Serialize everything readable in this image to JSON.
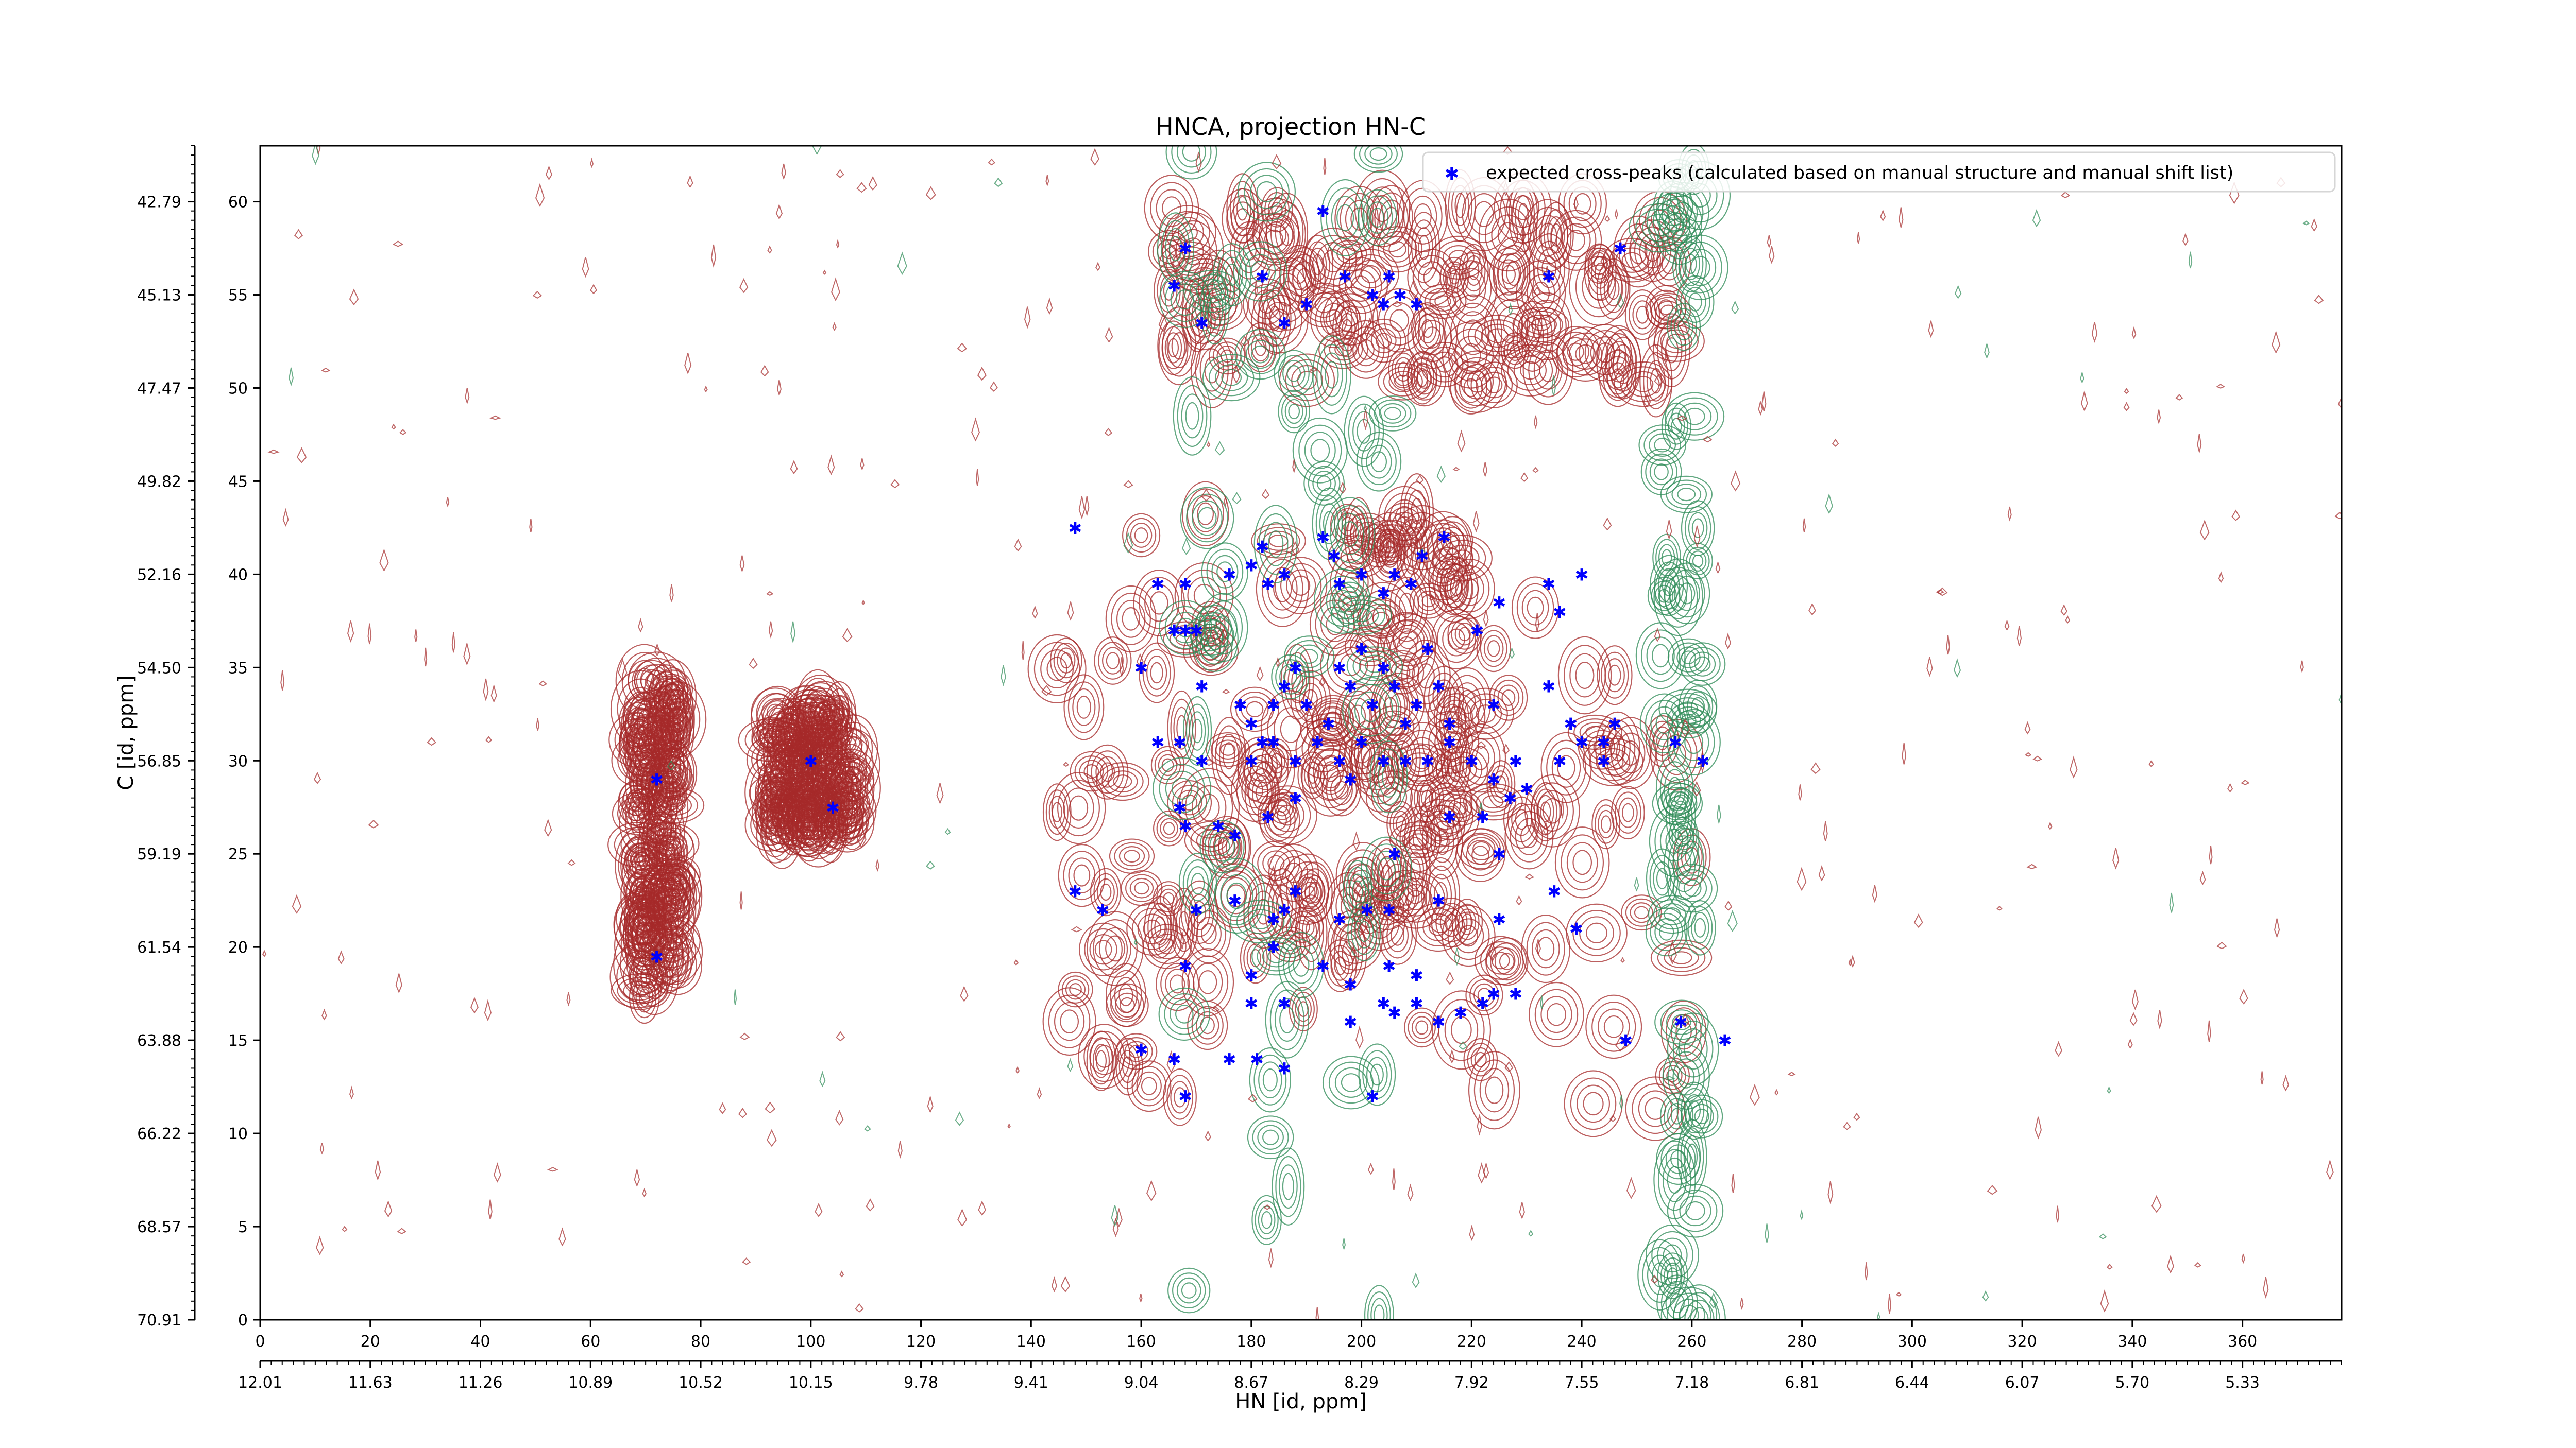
{
  "chart_data": {
    "type": "scatter",
    "title": "HNCA, projection HN-C",
    "xlabel": "HN [id, ppm]",
    "ylabel": "C [id, ppm]",
    "xlim": [
      0,
      378
    ],
    "ylim": [
      0,
      63
    ],
    "x_index_ticks": [
      "0",
      "20",
      "40",
      "60",
      "80",
      "100",
      "120",
      "140",
      "160",
      "180",
      "200",
      "220",
      "240",
      "260",
      "280",
      "300",
      "320",
      "340",
      "360"
    ],
    "x_ppm_ticks": [
      "12.01",
      "11.63",
      "11.26",
      "10.89",
      "10.52",
      "10.15",
      "9.78",
      "9.41",
      "9.04",
      "8.67",
      "8.29",
      "7.92",
      "7.55",
      "7.18",
      "6.81",
      "6.44",
      "6.07",
      "5.70",
      "5.33"
    ],
    "y_index_ticks": [
      "0",
      "5",
      "10",
      "15",
      "20",
      "25",
      "30",
      "35",
      "40",
      "45",
      "50",
      "55",
      "60"
    ],
    "y_ppm_ticks": [
      "70.91",
      "68.57",
      "66.22",
      "63.88",
      "61.54",
      "59.19",
      "56.85",
      "54.50",
      "52.16",
      "49.82",
      "47.47",
      "45.13",
      "42.79"
    ],
    "grid": false,
    "legend": {
      "position": "top-right",
      "label": "expected cross-peaks (calculated based on manual structure and manual shift list)"
    },
    "colors": {
      "peaks": "#0000ff",
      "positive_contours": "#a52a2a",
      "negative_contours": "#2e8b57"
    },
    "contour_ranges": [
      {
        "sign": "positive",
        "x": [
          160,
          222
        ],
        "y": [
          20,
          44
        ]
      },
      {
        "sign": "positive",
        "x": [
          143,
          262
        ],
        "y": [
          11,
          40
        ]
      },
      {
        "sign": "positive",
        "x": [
          165,
          258
        ],
        "y": [
          50,
          60
        ]
      },
      {
        "sign": "positive",
        "x": [
          68,
          76
        ],
        "y": [
          17,
          35
        ]
      },
      {
        "sign": "positive",
        "x": [
          92,
          108
        ],
        "y": [
          26,
          33
        ]
      },
      {
        "sign": "negative",
        "x": [
          166,
          206
        ],
        "y": [
          0,
          63
        ]
      },
      {
        "sign": "negative",
        "x": [
          254,
          262
        ],
        "y": [
          0,
          63
        ]
      }
    ],
    "series": [
      {
        "points": [
          [
            168,
            57.5
          ],
          [
            166,
            55.5
          ],
          [
            171,
            53.5
          ],
          [
            182,
            56
          ],
          [
            186,
            53.5
          ],
          [
            190,
            54.5
          ],
          [
            197,
            56
          ],
          [
            202,
            55
          ],
          [
            204,
            54.5
          ],
          [
            205,
            56
          ],
          [
            207,
            55
          ],
          [
            210,
            54.5
          ],
          [
            234,
            56
          ],
          [
            247,
            57.5
          ],
          [
            148,
            42.5
          ],
          [
            163,
            39.5
          ],
          [
            168,
            39.5
          ],
          [
            166,
            37
          ],
          [
            168,
            37
          ],
          [
            170,
            37
          ],
          [
            176,
            40
          ],
          [
            180,
            40.5
          ],
          [
            183,
            39.5
          ],
          [
            182,
            41.5
          ],
          [
            186,
            40
          ],
          [
            193,
            42
          ],
          [
            195,
            41
          ],
          [
            196,
            39.5
          ],
          [
            200,
            40
          ],
          [
            204,
            39
          ],
          [
            206,
            40
          ],
          [
            209,
            39.5
          ],
          [
            211,
            41
          ],
          [
            215,
            42
          ],
          [
            225,
            38.5
          ],
          [
            234,
            39.5
          ],
          [
            240,
            40
          ],
          [
            160,
            35
          ],
          [
            171,
            34
          ],
          [
            178,
            33
          ],
          [
            180,
            32
          ],
          [
            182,
            31
          ],
          [
            184,
            33
          ],
          [
            186,
            34
          ],
          [
            188,
            35
          ],
          [
            190,
            33
          ],
          [
            192,
            31
          ],
          [
            194,
            32
          ],
          [
            196,
            35
          ],
          [
            198,
            34
          ],
          [
            200,
            36
          ],
          [
            202,
            33
          ],
          [
            204,
            35
          ],
          [
            206,
            34
          ],
          [
            208,
            32
          ],
          [
            210,
            33
          ],
          [
            212,
            36
          ],
          [
            214,
            34
          ],
          [
            216,
            32
          ],
          [
            221,
            37
          ],
          [
            224,
            33
          ],
          [
            228,
            30
          ],
          [
            234,
            34
          ],
          [
            236,
            38
          ],
          [
            238,
            32
          ],
          [
            244,
            31
          ],
          [
            246,
            32
          ],
          [
            163,
            31
          ],
          [
            167,
            31
          ],
          [
            171,
            30
          ],
          [
            180,
            30
          ],
          [
            184,
            31
          ],
          [
            188,
            30
          ],
          [
            192,
            31
          ],
          [
            196,
            30
          ],
          [
            198,
            29
          ],
          [
            200,
            31
          ],
          [
            204,
            30
          ],
          [
            208,
            30
          ],
          [
            212,
            30
          ],
          [
            216,
            31
          ],
          [
            220,
            30
          ],
          [
            224,
            29
          ],
          [
            230,
            28.5
          ],
          [
            236,
            30
          ],
          [
            240,
            31
          ],
          [
            244,
            30
          ],
          [
            257,
            31
          ],
          [
            262,
            30
          ],
          [
            167,
            27.5
          ],
          [
            168,
            26.5
          ],
          [
            174,
            26.5
          ],
          [
            177,
            26
          ],
          [
            183,
            27
          ],
          [
            188,
            28
          ],
          [
            206,
            25
          ],
          [
            216,
            27
          ],
          [
            225,
            25
          ],
          [
            227,
            28
          ],
          [
            222,
            27
          ],
          [
            148,
            23
          ],
          [
            153,
            22
          ],
          [
            170,
            22
          ],
          [
            177,
            22.5
          ],
          [
            184,
            21.5
          ],
          [
            186,
            22
          ],
          [
            188,
            23
          ],
          [
            196,
            21.5
          ],
          [
            201,
            22
          ],
          [
            205,
            22
          ],
          [
            214,
            22.5
          ],
          [
            225,
            21.5
          ],
          [
            235,
            23
          ],
          [
            239,
            21
          ],
          [
            168,
            19
          ],
          [
            180,
            18.5
          ],
          [
            184,
            20
          ],
          [
            193,
            19
          ],
          [
            198,
            18
          ],
          [
            205,
            19
          ],
          [
            210,
            18.5
          ],
          [
            180,
            17
          ],
          [
            186,
            17
          ],
          [
            198,
            16
          ],
          [
            204,
            17
          ],
          [
            206,
            16.5
          ],
          [
            210,
            17
          ],
          [
            214,
            16
          ],
          [
            218,
            16.5
          ],
          [
            222,
            17
          ],
          [
            224,
            17.5
          ],
          [
            228,
            17.5
          ],
          [
            258,
            16
          ],
          [
            266,
            15
          ],
          [
            248,
            15
          ],
          [
            160,
            14.5
          ],
          [
            166,
            14
          ],
          [
            176,
            14
          ],
          [
            181,
            14
          ],
          [
            186,
            13.5
          ],
          [
            168,
            12
          ],
          [
            202,
            12
          ],
          [
            72,
            29
          ],
          [
            100,
            30
          ],
          [
            104,
            27.5
          ],
          [
            72,
            19.5
          ],
          [
            193,
            59.5
          ]
        ]
      }
    ]
  }
}
